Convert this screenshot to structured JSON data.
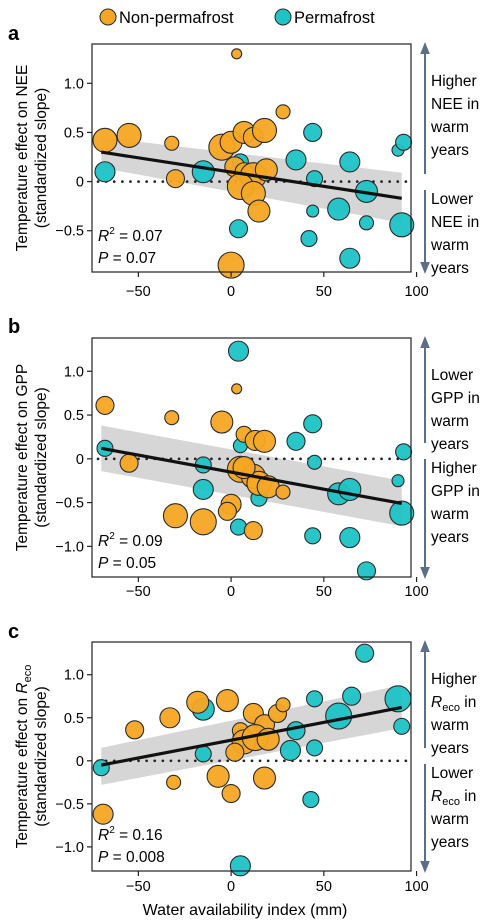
{
  "legend": {
    "items": [
      {
        "label": "Non-permafrost",
        "color": "#f5a623"
      },
      {
        "label": "Permafrost",
        "color": "#1ec3c6"
      }
    ]
  },
  "xlabel": "Water availability index (mm)",
  "colors": {
    "non_permafrost": "#f5a623",
    "permafrost": "#1ec3c6",
    "marker_edge": "#2b2b2b",
    "fit": "#111111",
    "ci": "#cfcfcf",
    "arrow": "#5d6e88"
  },
  "chart_data": [
    {
      "panel": "a",
      "type": "scatter",
      "ylabel": "Temperature effect on NEE",
      "ylabel2": "(standardized slope)",
      "xlim": [
        -75,
        97
      ],
      "ylim": [
        -0.92,
        1.4
      ],
      "xticks": [
        -50,
        0,
        50,
        100
      ],
      "yticks": [
        -0.5,
        0,
        0.5,
        1.0
      ],
      "ytick_labels": [
        "-0.5",
        "0",
        "0.5",
        "1.0"
      ],
      "stats": {
        "r2": "= 0.07",
        "p": "= 0.07"
      },
      "fit": {
        "x": [
          -70,
          92
        ],
        "y": [
          0.3,
          -0.17
        ],
        "ci_upper": [
          0.45,
          0.09
        ],
        "ci_lower": [
          0.14,
          -0.42
        ]
      },
      "annotation_top": [
        "Higher",
        "NEE in",
        "warm",
        "years"
      ],
      "annotation_bottom": [
        "Lower",
        "NEE in",
        "warm",
        "years"
      ],
      "points_nonpermafrost": [
        {
          "x": 3,
          "y": 1.3,
          "s": 5
        },
        {
          "x": -68,
          "y": 0.42,
          "s": 12
        },
        {
          "x": -55,
          "y": 0.47,
          "s": 12
        },
        {
          "x": -32,
          "y": 0.39,
          "s": 7
        },
        {
          "x": -30,
          "y": 0.03,
          "s": 9
        },
        {
          "x": -5,
          "y": 0.35,
          "s": 13
        },
        {
          "x": 0,
          "y": 0.4,
          "s": 11
        },
        {
          "x": 7,
          "y": 0.5,
          "s": 11
        },
        {
          "x": 12,
          "y": 0.45,
          "s": 10
        },
        {
          "x": 18,
          "y": 0.52,
          "s": 12
        },
        {
          "x": 28,
          "y": 0.71,
          "s": 7
        },
        {
          "x": 2,
          "y": 0.15,
          "s": 10
        },
        {
          "x": 7,
          "y": 0.1,
          "s": 9
        },
        {
          "x": 12,
          "y": 0.06,
          "s": 13
        },
        {
          "x": 19,
          "y": 0.12,
          "s": 11
        },
        {
          "x": 5,
          "y": -0.05,
          "s": 13
        },
        {
          "x": 12,
          "y": -0.12,
          "s": 12
        },
        {
          "x": 15,
          "y": -0.3,
          "s": 11
        },
        {
          "x": 0,
          "y": -0.85,
          "s": 13
        }
      ],
      "points_permafrost": [
        {
          "x": -68,
          "y": 0.1,
          "s": 10
        },
        {
          "x": -15,
          "y": 0.1,
          "s": 11
        },
        {
          "x": 5,
          "y": 0.2,
          "s": 8
        },
        {
          "x": 35,
          "y": 0.22,
          "s": 10
        },
        {
          "x": 44,
          "y": 0.5,
          "s": 9
        },
        {
          "x": 45,
          "y": 0.03,
          "s": 8
        },
        {
          "x": 44,
          "y": -0.3,
          "s": 6
        },
        {
          "x": 58,
          "y": -0.28,
          "s": 11
        },
        {
          "x": 64,
          "y": 0.2,
          "s": 10
        },
        {
          "x": 73,
          "y": -0.1,
          "s": 11
        },
        {
          "x": 73,
          "y": -0.42,
          "s": 7
        },
        {
          "x": 90,
          "y": 0.32,
          "s": 6
        },
        {
          "x": 93,
          "y": 0.4,
          "s": 8
        },
        {
          "x": 92,
          "y": -0.44,
          "s": 12
        },
        {
          "x": 4,
          "y": -0.48,
          "s": 9
        },
        {
          "x": 42,
          "y": -0.58,
          "s": 8
        },
        {
          "x": 64,
          "y": -0.78,
          "s": 10
        }
      ]
    },
    {
      "panel": "b",
      "type": "scatter",
      "ylabel": "Temperature effect on GPP",
      "ylabel2": "(standardized slope)",
      "xlim": [
        -75,
        97
      ],
      "ylim": [
        -1.35,
        1.38
      ],
      "xticks": [
        -50,
        0,
        50,
        100
      ],
      "yticks": [
        -1.0,
        -0.5,
        0,
        0.5,
        1.0
      ],
      "ytick_labels": [
        "-1.0",
        "-0.5",
        "0",
        "0.5",
        "1.0"
      ],
      "stats": {
        "r2": "= 0.09",
        "p": "= 0.05"
      },
      "fit": {
        "x": [
          -70,
          92
        ],
        "y": [
          0.12,
          -0.51
        ],
        "ci_upper": [
          0.38,
          -0.25
        ],
        "ci_lower": [
          -0.14,
          -0.77
        ]
      },
      "annotation_top": [
        "Lower",
        "GPP in",
        "warm",
        "years"
      ],
      "annotation_bottom": [
        "Higher",
        "GPP in",
        "warm",
        "years"
      ],
      "points_nonpermafrost": [
        {
          "x": 3,
          "y": 0.8,
          "s": 5
        },
        {
          "x": -68,
          "y": 0.61,
          "s": 9
        },
        {
          "x": -32,
          "y": 0.47,
          "s": 7
        },
        {
          "x": -5,
          "y": 0.42,
          "s": 11
        },
        {
          "x": 7,
          "y": 0.28,
          "s": 8
        },
        {
          "x": 13,
          "y": 0.21,
          "s": 10
        },
        {
          "x": 18,
          "y": 0.2,
          "s": 11
        },
        {
          "x": -55,
          "y": -0.05,
          "s": 9
        },
        {
          "x": 5,
          "y": -0.12,
          "s": 13
        },
        {
          "x": 12,
          "y": -0.2,
          "s": 12
        },
        {
          "x": 15,
          "y": -0.28,
          "s": 12
        },
        {
          "x": 20,
          "y": -0.32,
          "s": 11
        },
        {
          "x": 28,
          "y": -0.38,
          "s": 7
        },
        {
          "x": 0,
          "y": -0.52,
          "s": 10
        },
        {
          "x": -30,
          "y": -0.65,
          "s": 12
        },
        {
          "x": -15,
          "y": -0.72,
          "s": 13
        },
        {
          "x": 12,
          "y": -0.82,
          "s": 9
        },
        {
          "x": 7,
          "y": -0.1,
          "s": 11
        },
        {
          "x": -2,
          "y": -0.6,
          "s": 9
        }
      ],
      "points_permafrost": [
        {
          "x": 4,
          "y": 1.23,
          "s": 10
        },
        {
          "x": -68,
          "y": 0.12,
          "s": 8
        },
        {
          "x": -15,
          "y": -0.07,
          "s": 8
        },
        {
          "x": 5,
          "y": 0.15,
          "s": 7
        },
        {
          "x": 35,
          "y": 0.2,
          "s": 9
        },
        {
          "x": 44,
          "y": 0.4,
          "s": 9
        },
        {
          "x": 45,
          "y": -0.04,
          "s": 7
        },
        {
          "x": -15,
          "y": -0.35,
          "s": 10
        },
        {
          "x": 15,
          "y": -0.45,
          "s": 8
        },
        {
          "x": 58,
          "y": -0.4,
          "s": 11
        },
        {
          "x": 64,
          "y": -0.35,
          "s": 11
        },
        {
          "x": 90,
          "y": -0.25,
          "s": 6
        },
        {
          "x": 93,
          "y": 0.08,
          "s": 8
        },
        {
          "x": 92,
          "y": -0.62,
          "s": 12
        },
        {
          "x": 4,
          "y": -0.78,
          "s": 8
        },
        {
          "x": 44,
          "y": -0.88,
          "s": 8
        },
        {
          "x": 64,
          "y": -0.9,
          "s": 10
        },
        {
          "x": 73,
          "y": -1.28,
          "s": 9
        }
      ]
    },
    {
      "panel": "c",
      "type": "scatter",
      "ylabel": "Temperature effect on",
      "ylabel_sub": "eco",
      "ylabel2": "(standardized slope)",
      "xlim": [
        -75,
        97
      ],
      "ylim": [
        -1.28,
        1.38
      ],
      "xticks": [
        -50,
        0,
        50,
        100
      ],
      "yticks": [
        -1.0,
        -0.5,
        0,
        0.5,
        1.0
      ],
      "ytick_labels": [
        "-1.0",
        "-0.5",
        "0",
        "0.5",
        "1.0"
      ],
      "stats": {
        "r2": "= 0.16",
        "p": "= 0.008"
      },
      "fit": {
        "x": [
          -70,
          92
        ],
        "y": [
          -0.05,
          0.62
        ],
        "ci_upper": [
          0.15,
          0.88
        ],
        "ci_lower": [
          -0.28,
          0.38
        ]
      },
      "annotation_top": [
        "Higher",
        "R",
        "in",
        "warm",
        "years"
      ],
      "annotation_bottom": [
        "Lower",
        "R",
        "in",
        "warm",
        "years"
      ],
      "points_nonpermafrost": [
        {
          "x": -18,
          "y": 0.68,
          "s": 11
        },
        {
          "x": -2,
          "y": 0.7,
          "s": 11
        },
        {
          "x": -33,
          "y": 0.5,
          "s": 10
        },
        {
          "x": -52,
          "y": 0.36,
          "s": 9
        },
        {
          "x": 12,
          "y": 0.55,
          "s": 10
        },
        {
          "x": 18,
          "y": 0.42,
          "s": 10
        },
        {
          "x": 25,
          "y": 0.55,
          "s": 9
        },
        {
          "x": 5,
          "y": 0.35,
          "s": 8
        },
        {
          "x": 7,
          "y": 0.22,
          "s": 12
        },
        {
          "x": 13,
          "y": 0.27,
          "s": 13
        },
        {
          "x": 20,
          "y": 0.25,
          "s": 11
        },
        {
          "x": 2,
          "y": 0.1,
          "s": 9
        },
        {
          "x": -7,
          "y": -0.18,
          "s": 11
        },
        {
          "x": 18,
          "y": -0.2,
          "s": 11
        },
        {
          "x": 0,
          "y": -0.38,
          "s": 9
        },
        {
          "x": -31,
          "y": -0.25,
          "s": 7
        },
        {
          "x": -69,
          "y": -0.62,
          "s": 10
        },
        {
          "x": 28,
          "y": 0.65,
          "s": 7
        }
      ],
      "points_permafrost": [
        {
          "x": 72,
          "y": 1.25,
          "s": 9
        },
        {
          "x": -15,
          "y": 0.6,
          "s": 11
        },
        {
          "x": 45,
          "y": 0.72,
          "s": 8
        },
        {
          "x": 65,
          "y": 0.75,
          "s": 9
        },
        {
          "x": 58,
          "y": 0.52,
          "s": 13
        },
        {
          "x": 90,
          "y": 0.72,
          "s": 13
        },
        {
          "x": 92,
          "y": 0.4,
          "s": 8
        },
        {
          "x": 35,
          "y": 0.35,
          "s": 9
        },
        {
          "x": 45,
          "y": 0.15,
          "s": 8
        },
        {
          "x": 32,
          "y": 0.12,
          "s": 10
        },
        {
          "x": 6,
          "y": 0.28,
          "s": 9
        },
        {
          "x": -15,
          "y": 0.08,
          "s": 8
        },
        {
          "x": -70,
          "y": -0.08,
          "s": 8
        },
        {
          "x": 43,
          "y": -0.45,
          "s": 8
        },
        {
          "x": 5,
          "y": -1.22,
          "s": 10
        }
      ]
    }
  ]
}
